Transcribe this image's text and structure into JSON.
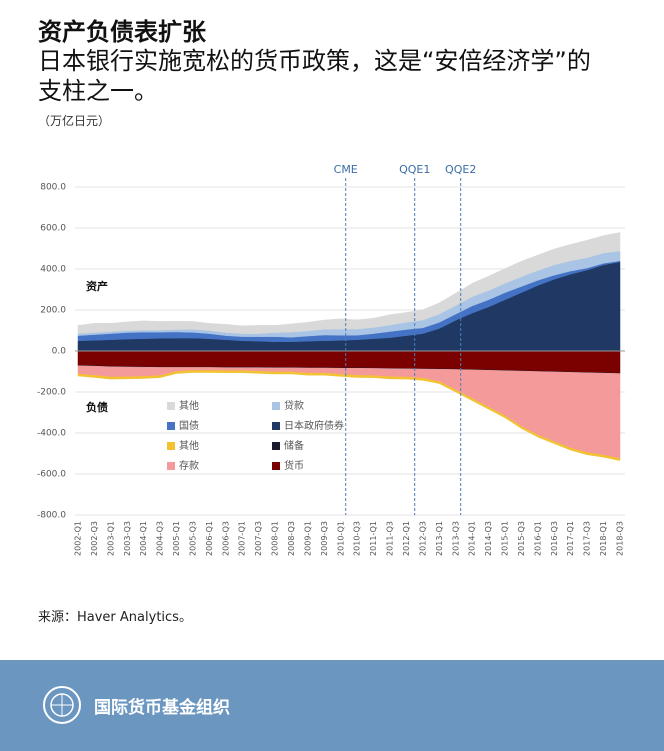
{
  "chart_data": {
    "type": "stacked-area",
    "title": "资产负债表扩张",
    "subtitle": "日本银行实施宽松的货币政策，这是“安倍经济学”的支柱之一。",
    "unit": "（万亿日元）",
    "area_labels": [
      "资产",
      "负债"
    ],
    "annotations": [
      "CME",
      "QQE1",
      "QQE2"
    ],
    "categories": [
      "2002-Q1",
      "2002-Q3",
      "2003-Q1",
      "2003-Q3",
      "2004-Q1",
      "2004-Q3",
      "2005-Q1",
      "2005-Q3",
      "2006-Q1",
      "2006-Q3",
      "2007-Q1",
      "2007-Q3",
      "2008-Q1",
      "2008-Q3",
      "2009-Q1",
      "2009-Q3",
      "2010-Q1",
      "2010-Q3",
      "2011-Q1",
      "2011-Q3",
      "2012-Q1",
      "2012-Q3",
      "2013-Q1",
      "2013-Q3",
      "2014-Q1",
      "2014-Q3",
      "2015-Q1",
      "2015-Q3",
      "2016-Q1",
      "2016-Q3",
      "2017-Q1",
      "2017-Q3",
      "2018-Q1",
      "2018-Q3"
    ],
    "series": [
      {
        "name": "其他",
        "color": "#d9d9d9",
        "values": [
          40,
          45,
          40,
          42,
          45,
          42,
          40,
          38,
          35,
          40,
          38,
          40,
          35,
          40,
          42,
          45,
          50,
          45,
          45,
          50,
          48,
          50,
          55,
          60,
          65,
          70,
          72,
          75,
          75,
          78,
          80,
          85,
          85,
          90
        ]
      },
      {
        "name": "贷款",
        "color": "#a9c4e4",
        "values": [
          10,
          10,
          10,
          10,
          10,
          10,
          12,
          15,
          15,
          15,
          15,
          15,
          20,
          25,
          25,
          28,
          30,
          30,
          30,
          32,
          35,
          38,
          40,
          42,
          45,
          45,
          45,
          48,
          48,
          50,
          50,
          50,
          50,
          48
        ]
      },
      {
        "name": "国债",
        "color": "#4472c4",
        "values": [
          25,
          28,
          30,
          32,
          32,
          30,
          30,
          28,
          25,
          20,
          20,
          22,
          25,
          22,
          25,
          28,
          25,
          22,
          25,
          30,
          30,
          28,
          30,
          30,
          35,
          35,
          35,
          30,
          25,
          20,
          15,
          10,
          8,
          5
        ]
      },
      {
        "name": "日本政府债券",
        "color": "#1f3864",
        "values": [
          50,
          52,
          55,
          58,
          60,
          62,
          63,
          63,
          60,
          55,
          50,
          48,
          45,
          45,
          48,
          50,
          52,
          55,
          60,
          65,
          75,
          85,
          110,
          150,
          185,
          215,
          250,
          285,
          320,
          350,
          375,
          395,
          420,
          435
        ]
      },
      {
        "name": "其他",
        "color": "#f2c233",
        "values": [
          -10,
          -10,
          -10,
          -10,
          -10,
          -10,
          -10,
          -10,
          -10,
          -10,
          -10,
          -10,
          -10,
          -10,
          -10,
          -10,
          -10,
          -10,
          -10,
          -10,
          -10,
          -10,
          -10,
          -10,
          -10,
          -10,
          -10,
          -10,
          -10,
          -10,
          -10,
          -10,
          -10,
          -10
        ]
      },
      {
        "name": "储备",
        "color": "#1b1b2f",
        "values": [
          -2,
          -2,
          -2,
          -2,
          -2,
          -2,
          -2,
          -2,
          -2,
          -2,
          -2,
          -2,
          -2,
          -2,
          -2,
          -2,
          -2,
          -2,
          -2,
          -2,
          -2,
          -2,
          -2,
          -2,
          -2,
          -2,
          -2,
          -2,
          -2,
          -2,
          -2,
          -2,
          -2,
          -2
        ]
      },
      {
        "name": "存款",
        "color": "#f59a9a",
        "values": [
          -40,
          -45,
          -50,
          -48,
          -45,
          -40,
          -20,
          -15,
          -15,
          -15,
          -15,
          -18,
          -20,
          -20,
          -25,
          -25,
          -30,
          -35,
          -35,
          -40,
          -40,
          -45,
          -60,
          -100,
          -140,
          -180,
          -220,
          -270,
          -310,
          -340,
          -370,
          -390,
          -400,
          -415
        ]
      },
      {
        "name": "货币",
        "color": "#7b0000",
        "values": [
          -70,
          -72,
          -75,
          -76,
          -77,
          -78,
          -78,
          -78,
          -78,
          -79,
          -79,
          -79,
          -80,
          -80,
          -81,
          -81,
          -82,
          -82,
          -83,
          -84,
          -85,
          -86,
          -87,
          -88,
          -90,
          -92,
          -94,
          -96,
          -98,
          -100,
          -102,
          -104,
          -106,
          -108
        ]
      }
    ],
    "ylim": [
      -800,
      800
    ],
    "yticks": [
      {
        "value": -800,
        "label": "-800.0"
      },
      {
        "value": -600,
        "label": "-600.0"
      },
      {
        "value": -400,
        "label": "-400.0"
      },
      {
        "value": -200,
        "label": "-200.0"
      },
      {
        "value": 0,
        "label": "0.0"
      },
      {
        "value": 200,
        "label": "200.0"
      },
      {
        "value": 400,
        "label": "400.0"
      },
      {
        "value": 600,
        "label": "600.0"
      },
      {
        "value": 800,
        "label": "800.0"
      }
    ],
    "grid": true,
    "source": "来源：Haver Analytics。"
  },
  "footer": {
    "org": "国际货币基金组织"
  }
}
